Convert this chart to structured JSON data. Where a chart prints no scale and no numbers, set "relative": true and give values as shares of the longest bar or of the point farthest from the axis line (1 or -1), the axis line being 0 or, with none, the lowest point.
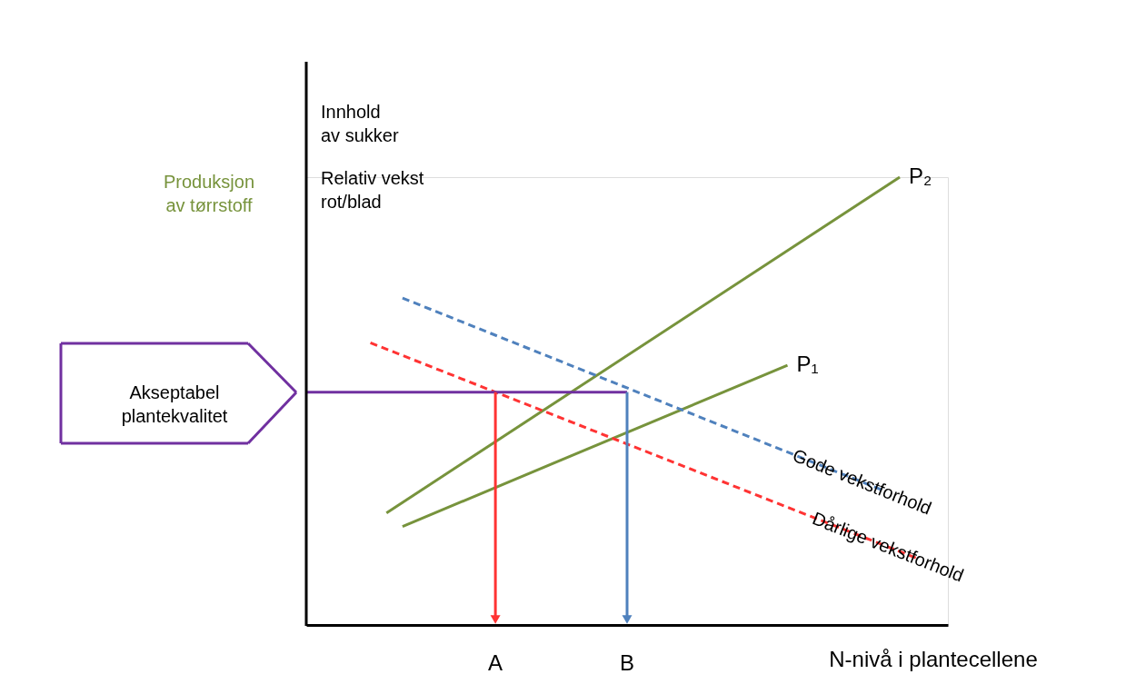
{
  "chart_data": {
    "type": "line",
    "relative": true,
    "categories": [
      null,
      null,
      null,
      null,
      null,
      null,
      null,
      null,
      null,
      null,
      null,
      null,
      null,
      null,
      null,
      null,
      null,
      null,
      null,
      null,
      null,
      null,
      null,
      null,
      null,
      null,
      null,
      null,
      null,
      null,
      null,
      null,
      null,
      null,
      null,
      null,
      null,
      null,
      null,
      null,
      null
    ],
    "xlabel": "N-nivå i plantecellene",
    "ylabel": "Produksjon\nav tørrstoff",
    "annotations": [
      "Innhold\nav sukker",
      "Relativ vekst\nrot/blad",
      "Akseptabel\nplantekvalitet",
      "A",
      "B"
    ],
    "series": [
      {
        "name": "P₂",
        "color": "#77933c",
        "line_style": "solid",
        "values": [
          null,
          null,
          null,
          null,
          null,
          0.25,
          null,
          null,
          null,
          null,
          null,
          null,
          null,
          null,
          null,
          null,
          null,
          null,
          null,
          null,
          null,
          null,
          null,
          null,
          null,
          null,
          null,
          null,
          null,
          null,
          null,
          null,
          null,
          null,
          null,
          null,
          null,
          1.0,
          null,
          null,
          null
        ]
      },
      {
        "name": "P₁",
        "color": "#77933c",
        "line_style": "solid",
        "values": [
          null,
          null,
          null,
          null,
          null,
          null,
          0.22,
          null,
          null,
          null,
          null,
          null,
          null,
          null,
          null,
          null,
          null,
          null,
          null,
          null,
          null,
          null,
          null,
          null,
          null,
          null,
          null,
          null,
          null,
          null,
          0.58,
          null,
          null,
          null,
          null,
          null,
          null,
          null,
          null,
          null,
          null
        ]
      },
      {
        "name": "Gode vekstforhold",
        "color": "#4f81bd",
        "line_style": "dashed",
        "values": [
          null,
          null,
          null,
          null,
          null,
          null,
          0.73,
          null,
          null,
          null,
          null,
          null,
          null,
          null,
          null,
          null,
          null,
          null,
          null,
          null,
          null,
          null,
          null,
          null,
          null,
          null,
          null,
          null,
          null,
          null,
          null,
          null,
          null,
          null,
          null,
          null,
          0.3,
          null,
          null,
          null,
          null
        ]
      },
      {
        "name": "Dårlige vekstforhold",
        "color": "#ff3333",
        "line_style": "dashed",
        "values": [
          null,
          null,
          null,
          null,
          0.63,
          null,
          null,
          null,
          null,
          null,
          null,
          null,
          null,
          null,
          null,
          null,
          null,
          null,
          null,
          null,
          null,
          null,
          null,
          null,
          null,
          null,
          null,
          null,
          null,
          null,
          null,
          null,
          null,
          null,
          null,
          null,
          null,
          null,
          0.15,
          null,
          null
        ]
      },
      {
        "color": "#7030a0",
        "line_style": "solid",
        "values": [
          0.52,
          null,
          null,
          null,
          null,
          null,
          null,
          null,
          null,
          null,
          null,
          null,
          null,
          null,
          null,
          null,
          null,
          null,
          null,
          null,
          0.52,
          null,
          null,
          null,
          null,
          null,
          null,
          null,
          null,
          null,
          null,
          null,
          null,
          null,
          null,
          null,
          null,
          null,
          null,
          null,
          null
        ]
      }
    ]
  }
}
